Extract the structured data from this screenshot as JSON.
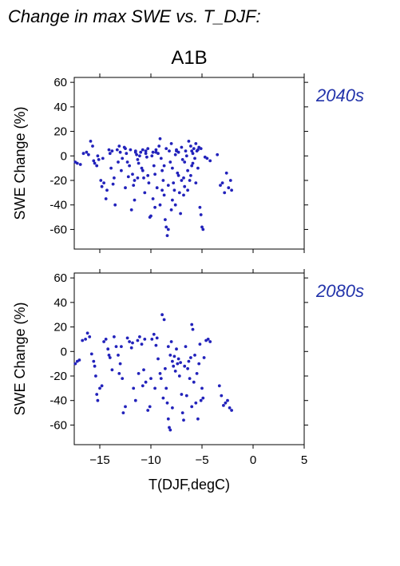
{
  "figure": {
    "title": "Change in max SWE vs. T_DJF:",
    "scenario": "A1B",
    "xlabel": "T(DJF,degC)",
    "ylabel": "SWE Change (%)",
    "point_color": "#2222bb",
    "label_color": "#2233aa"
  },
  "chart_data": [
    {
      "type": "scatter",
      "period": "2040s",
      "xlim": [
        -17.5,
        5
      ],
      "ylim": [
        -76,
        64
      ],
      "xticks": [
        -15,
        -10,
        -5,
        0,
        5
      ],
      "yticks": [
        -60,
        -40,
        -20,
        0,
        20,
        40,
        60
      ],
      "points": [
        [
          -17.4,
          -5
        ],
        [
          -17.2,
          -6
        ],
        [
          -16.9,
          -7
        ],
        [
          -16.6,
          2
        ],
        [
          -16.3,
          3
        ],
        [
          -16.1,
          1
        ],
        [
          -15.9,
          12
        ],
        [
          -15.7,
          8
        ],
        [
          -15.6,
          -4
        ],
        [
          -15.5,
          -6
        ],
        [
          -15.3,
          -8
        ],
        [
          -15.1,
          -3
        ],
        [
          -14.9,
          -20
        ],
        [
          -14.8,
          -25
        ],
        [
          -14.6,
          -22
        ],
        [
          -14.4,
          -35
        ],
        [
          -14.3,
          -28
        ],
        [
          -14.1,
          5
        ],
        [
          -14.0,
          2
        ],
        [
          -13.9,
          -10
        ],
        [
          -13.8,
          4
        ],
        [
          -13.6,
          -18
        ],
        [
          -13.5,
          -40
        ],
        [
          -13.3,
          5
        ],
        [
          -13.1,
          8
        ],
        [
          -13.0,
          3
        ],
        [
          -12.8,
          -2
        ],
        [
          -12.6,
          7
        ],
        [
          -12.4,
          2
        ],
        [
          -12.3,
          -5
        ],
        [
          -12.1,
          -8
        ],
        [
          -12.0,
          5
        ],
        [
          -11.9,
          -44
        ],
        [
          -11.8,
          -15
        ],
        [
          -11.7,
          -24
        ],
        [
          -11.6,
          -20
        ],
        [
          -11.5,
          4
        ],
        [
          -11.4,
          1
        ],
        [
          -11.3,
          -3
        ],
        [
          -11.2,
          -6
        ],
        [
          -11.1,
          0
        ],
        [
          -11.0,
          3
        ],
        [
          -10.9,
          -10
        ],
        [
          -10.8,
          5
        ],
        [
          -10.7,
          -18
        ],
        [
          -10.6,
          -30
        ],
        [
          -10.5,
          2
        ],
        [
          -10.4,
          -1
        ],
        [
          -10.3,
          6
        ],
        [
          -10.2,
          -22
        ],
        [
          -10.1,
          -50
        ],
        [
          -10.0,
          -49
        ],
        [
          -9.9,
          0
        ],
        [
          -9.8,
          3
        ],
        [
          -9.7,
          -8
        ],
        [
          -9.6,
          -15
        ],
        [
          -9.5,
          5
        ],
        [
          -9.4,
          -26
        ],
        [
          -9.3,
          2
        ],
        [
          -9.2,
          8
        ],
        [
          -9.1,
          14
        ],
        [
          -9.0,
          -2
        ],
        [
          -8.9,
          -12
        ],
        [
          -8.8,
          -20
        ],
        [
          -8.7,
          -32
        ],
        [
          -8.6,
          -52
        ],
        [
          -8.5,
          -58
        ],
        [
          -8.4,
          -65
        ],
        [
          -8.3,
          -60
        ],
        [
          -8.2,
          4
        ],
        [
          -8.1,
          -5
        ],
        [
          -8.0,
          10
        ],
        [
          -7.9,
          -10
        ],
        [
          -7.8,
          -22
        ],
        [
          -7.7,
          -28
        ],
        [
          -7.6,
          1
        ],
        [
          -7.5,
          5
        ],
        [
          -7.4,
          -14
        ],
        [
          -7.3,
          3
        ],
        [
          -7.2,
          -30
        ],
        [
          -7.1,
          -47
        ],
        [
          -7.0,
          7
        ],
        [
          -6.9,
          -3
        ],
        [
          -6.8,
          -18
        ],
        [
          -6.7,
          -25
        ],
        [
          -6.6,
          4
        ],
        [
          -6.5,
          0
        ],
        [
          -6.4,
          -12
        ],
        [
          -6.3,
          12
        ],
        [
          -6.2,
          -20
        ],
        [
          -6.1,
          8
        ],
        [
          -6.0,
          -8
        ],
        [
          -5.9,
          2
        ],
        [
          -5.8,
          6
        ],
        [
          -5.7,
          -2
        ],
        [
          -5.6,
          10
        ],
        [
          -5.5,
          4
        ],
        [
          -5.4,
          -10
        ],
        [
          -5.3,
          7
        ],
        [
          -5.2,
          -42
        ],
        [
          -5.1,
          -48
        ],
        [
          -5.0,
          -58
        ],
        [
          -4.9,
          -60
        ],
        [
          -4.7,
          -1
        ],
        [
          -4.5,
          -2
        ],
        [
          -4.2,
          -4
        ],
        [
          -3.5,
          1
        ],
        [
          -3.2,
          -24
        ],
        [
          -3.0,
          -22
        ],
        [
          -2.8,
          -30
        ],
        [
          -2.6,
          -14
        ],
        [
          -2.4,
          -26
        ],
        [
          -2.2,
          -20
        ],
        [
          -2.1,
          -28
        ],
        [
          -15.2,
          0
        ],
        [
          -14.7,
          -2
        ],
        [
          -13.2,
          -5
        ],
        [
          -12.9,
          -12
        ],
        [
          -12.2,
          -17
        ],
        [
          -11.6,
          -36
        ],
        [
          -10.8,
          -12
        ],
        [
          -9.8,
          -35
        ],
        [
          -9.1,
          -40
        ],
        [
          -8.7,
          -8
        ],
        [
          -8.3,
          -24
        ],
        [
          -7.9,
          -36
        ],
        [
          -7.6,
          -40
        ],
        [
          -7.3,
          -16
        ],
        [
          -7.0,
          -20
        ],
        [
          -6.7,
          -5
        ],
        [
          -6.4,
          -28
        ],
        [
          -6.1,
          -16
        ],
        [
          -5.9,
          -6
        ],
        [
          -5.6,
          -22
        ],
        [
          -10.3,
          -16
        ],
        [
          -11.3,
          -18
        ],
        [
          -12.5,
          -26
        ],
        [
          -13.7,
          -23
        ],
        [
          -9.6,
          -42
        ],
        [
          -8.9,
          -28
        ],
        [
          -8.0,
          -44
        ],
        [
          -6.8,
          -32
        ],
        [
          -5.4,
          5
        ],
        [
          -5.1,
          6
        ],
        [
          -6.0,
          4
        ],
        [
          -7.5,
          4
        ],
        [
          -8.5,
          6
        ],
        [
          -9.5,
          3
        ],
        [
          -10.5,
          4
        ],
        [
          -11.5,
          3
        ],
        [
          -12.5,
          6
        ]
      ]
    },
    {
      "type": "scatter",
      "period": "2080s",
      "xlim": [
        -17.5,
        5
      ],
      "ylim": [
        -76,
        64
      ],
      "xticks": [
        -15,
        -10,
        -5,
        0,
        5
      ],
      "yticks": [
        -60,
        -40,
        -20,
        0,
        20,
        40,
        60
      ],
      "points": [
        [
          -17.4,
          -10
        ],
        [
          -17.2,
          -8
        ],
        [
          -17.0,
          -7
        ],
        [
          -16.7,
          9
        ],
        [
          -16.4,
          10
        ],
        [
          -16.2,
          15
        ],
        [
          -16.0,
          12
        ],
        [
          -15.8,
          -2
        ],
        [
          -15.6,
          -8
        ],
        [
          -15.5,
          -12
        ],
        [
          -15.4,
          -20
        ],
        [
          -15.3,
          -35
        ],
        [
          -15.2,
          -40
        ],
        [
          -15.0,
          -30
        ],
        [
          -14.8,
          -28
        ],
        [
          -14.6,
          8
        ],
        [
          -14.4,
          10
        ],
        [
          -14.2,
          2
        ],
        [
          -14.0,
          -5
        ],
        [
          -13.8,
          -15
        ],
        [
          -13.6,
          12
        ],
        [
          -13.4,
          4
        ],
        [
          -13.2,
          -3
        ],
        [
          -13.0,
          -10
        ],
        [
          -12.8,
          -22
        ],
        [
          -12.7,
          -50
        ],
        [
          -12.5,
          -45
        ],
        [
          -12.3,
          11
        ],
        [
          -12.1,
          8
        ],
        [
          -11.9,
          3
        ],
        [
          -11.7,
          -30
        ],
        [
          -11.5,
          -40
        ],
        [
          -11.3,
          9
        ],
        [
          -11.1,
          12
        ],
        [
          -10.9,
          6
        ],
        [
          -10.7,
          -15
        ],
        [
          -10.5,
          -25
        ],
        [
          -10.3,
          -48
        ],
        [
          -10.1,
          -45
        ],
        [
          -9.9,
          10
        ],
        [
          -9.7,
          14
        ],
        [
          -9.5,
          5
        ],
        [
          -9.3,
          -6
        ],
        [
          -9.1,
          -18
        ],
        [
          -8.9,
          30
        ],
        [
          -8.7,
          26
        ],
        [
          -8.5,
          -30
        ],
        [
          -8.4,
          -42
        ],
        [
          -8.3,
          -55
        ],
        [
          -8.2,
          -62
        ],
        [
          -8.1,
          -64
        ],
        [
          -8.0,
          8
        ],
        [
          -7.9,
          -8
        ],
        [
          -7.8,
          -12
        ],
        [
          -7.6,
          -16
        ],
        [
          -7.4,
          -10
        ],
        [
          -7.2,
          -20
        ],
        [
          -7.0,
          -35
        ],
        [
          -6.9,
          -50
        ],
        [
          -6.8,
          -56
        ],
        [
          -6.6,
          4
        ],
        [
          -6.4,
          -14
        ],
        [
          -6.2,
          -22
        ],
        [
          -6.0,
          22
        ],
        [
          -5.9,
          18
        ],
        [
          -5.8,
          -25
        ],
        [
          -5.6,
          -42
        ],
        [
          -5.4,
          -55
        ],
        [
          -5.2,
          6
        ],
        [
          -5.0,
          -30
        ],
        [
          -4.8,
          -5
        ],
        [
          -4.6,
          9
        ],
        [
          -4.4,
          10
        ],
        [
          -4.2,
          8
        ],
        [
          -3.3,
          -28
        ],
        [
          -3.1,
          -36
        ],
        [
          -2.9,
          -44
        ],
        [
          -2.7,
          -42
        ],
        [
          -2.5,
          -40
        ],
        [
          -2.3,
          -46
        ],
        [
          -2.1,
          -48
        ],
        [
          -10.0,
          -22
        ],
        [
          -9.0,
          -22
        ],
        [
          -8.6,
          -14
        ],
        [
          -8.1,
          -3
        ],
        [
          -7.7,
          -4
        ],
        [
          -7.3,
          -6
        ],
        [
          -7.1,
          -9
        ],
        [
          -6.7,
          -12
        ],
        [
          -6.3,
          -8
        ],
        [
          -6.1,
          -5
        ],
        [
          -5.7,
          -3
        ],
        [
          -5.5,
          -18
        ],
        [
          -5.3,
          -10
        ],
        [
          -7.5,
          2
        ],
        [
          -8.3,
          4
        ],
        [
          -9.4,
          11
        ],
        [
          -10.6,
          10
        ],
        [
          -11.8,
          7
        ],
        [
          -12.9,
          4
        ],
        [
          -14.1,
          -3
        ],
        [
          -13.1,
          -18
        ],
        [
          -11.2,
          -18
        ],
        [
          -10.8,
          -28
        ],
        [
          -9.6,
          -30
        ],
        [
          -8.8,
          -38
        ],
        [
          -7.9,
          -46
        ],
        [
          -6.5,
          -36
        ],
        [
          -6.0,
          -45
        ],
        [
          -5.1,
          -40
        ],
        [
          -4.9,
          -38
        ]
      ]
    }
  ]
}
